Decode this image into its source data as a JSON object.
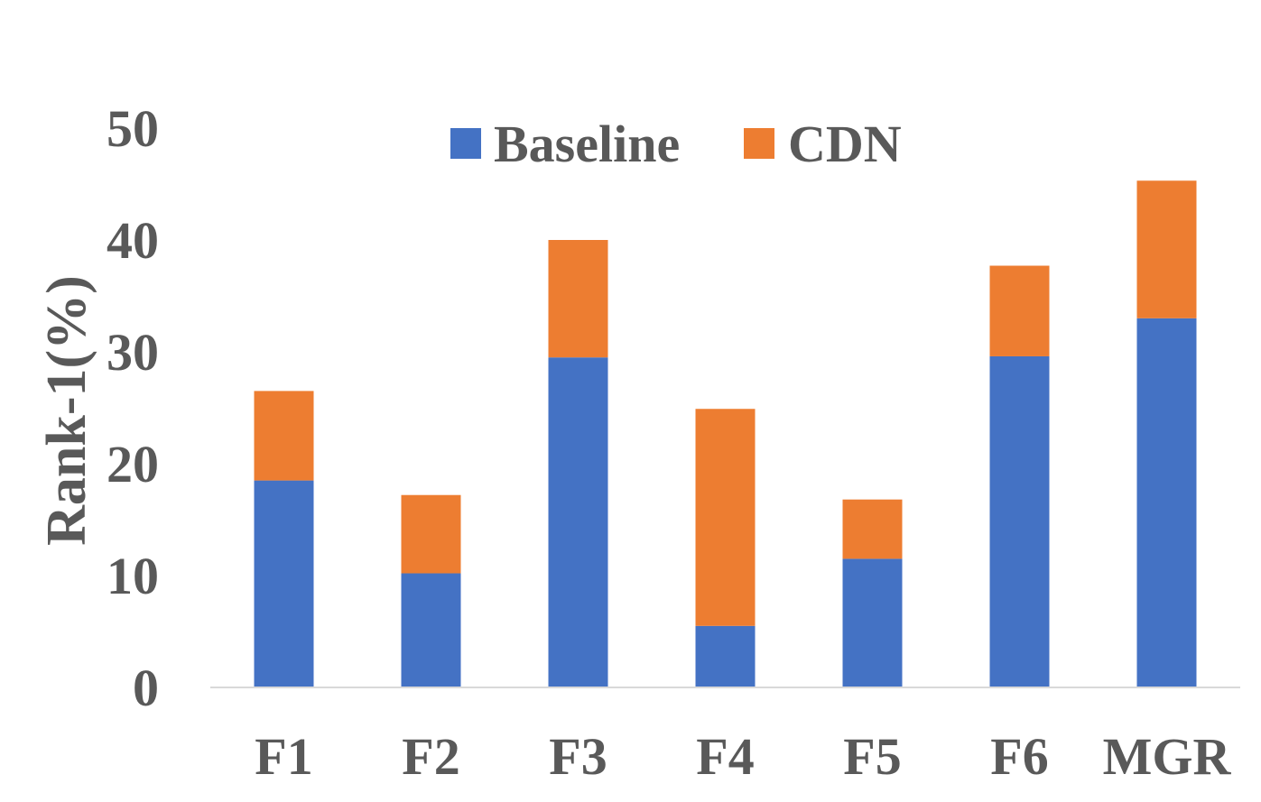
{
  "chart_data": {
    "type": "bar",
    "stacked": true,
    "categories": [
      "F1",
      "F2",
      "F3",
      "F4",
      "F5",
      "F6",
      "MGR"
    ],
    "series": [
      {
        "name": "Baseline",
        "color": "#4472C4",
        "values": [
          18.5,
          10.2,
          29.5,
          5.5,
          11.5,
          29.6,
          33.0
        ]
      },
      {
        "name": "CDN",
        "color": "#ED7D31",
        "values": [
          8.0,
          7.0,
          10.5,
          19.4,
          5.3,
          8.1,
          12.3
        ]
      }
    ],
    "title": "",
    "xlabel": "",
    "ylabel": "Rank-1(%)",
    "ylim": [
      0,
      50
    ],
    "yticks": [
      "0",
      "10",
      "20",
      "30",
      "40",
      "50"
    ],
    "grid": false,
    "legend_position": "top-center"
  }
}
